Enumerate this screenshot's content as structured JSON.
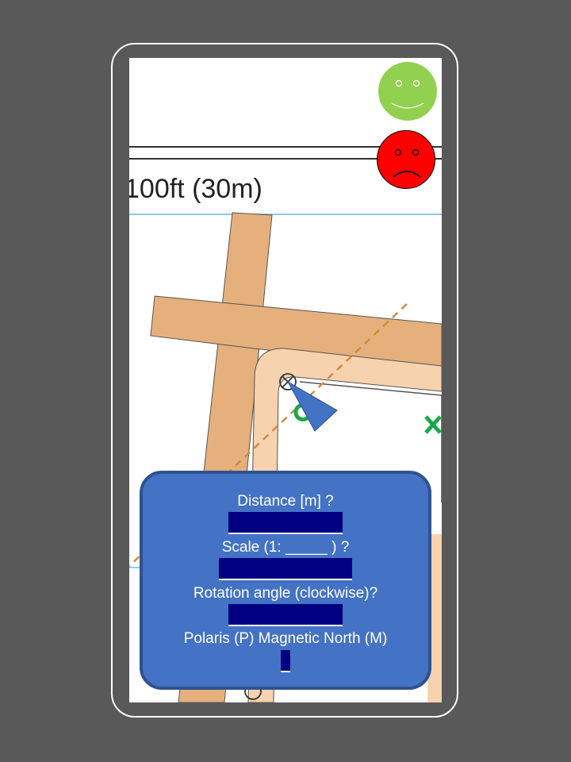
{
  "map": {
    "scale_text": "100ft (30m)",
    "colors": {
      "road_outer": "#e5b07c",
      "road_inner": "#f6d2ae",
      "dashed_line": "#d38a3c",
      "marker_green": "#1aa84a",
      "pointer": "#4472c4",
      "grid_line": "#8dcde8"
    }
  },
  "feedback": {
    "happy_icon": "happy-face-icon",
    "sad_icon": "sad-face-icon",
    "happy_color": "#92d050",
    "sad_color": "#ff0000"
  },
  "quiz": {
    "distance_label": "Distance [m] ?",
    "distance_value": "",
    "scale_label": "Scale (1: _____ ) ?",
    "scale_value": "",
    "rotation_label": "Rotation angle  (clockwise)?",
    "rotation_value": "",
    "north_label": "Polaris (P)  Magnetic North (M)",
    "north_value": "",
    "panel_color": "#4472c4",
    "field_color": "#000080"
  }
}
